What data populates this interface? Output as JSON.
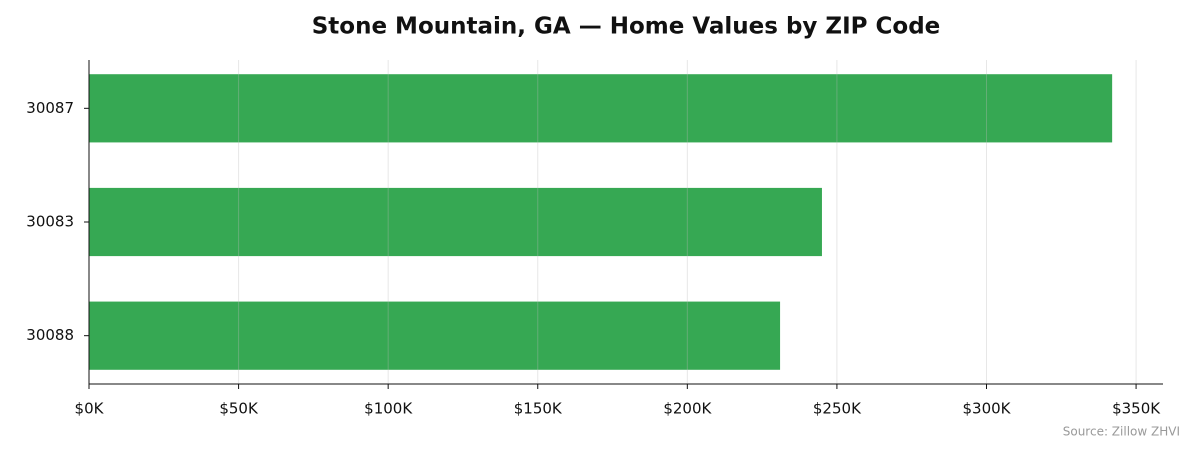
{
  "chart_data": {
    "type": "hbar",
    "title": "Stone Mountain, GA — Home Values by ZIP Code",
    "categories": [
      "30087",
      "30083",
      "30088"
    ],
    "values": [
      342000,
      245000,
      231000
    ],
    "color": "#36a853",
    "xlim": [
      0,
      359000
    ],
    "xticks": [
      {
        "value": 0,
        "label": "$0K"
      },
      {
        "value": 50000,
        "label": "$50K"
      },
      {
        "value": 100000,
        "label": "$100K"
      },
      {
        "value": 150000,
        "label": "$150K"
      },
      {
        "value": 200000,
        "label": "$200K"
      },
      {
        "value": 250000,
        "label": "$250K"
      },
      {
        "value": 300000,
        "label": "$300K"
      },
      {
        "value": 350000,
        "label": "$350K"
      }
    ],
    "grid": true,
    "source": "Source: Zillow ZHVI"
  }
}
